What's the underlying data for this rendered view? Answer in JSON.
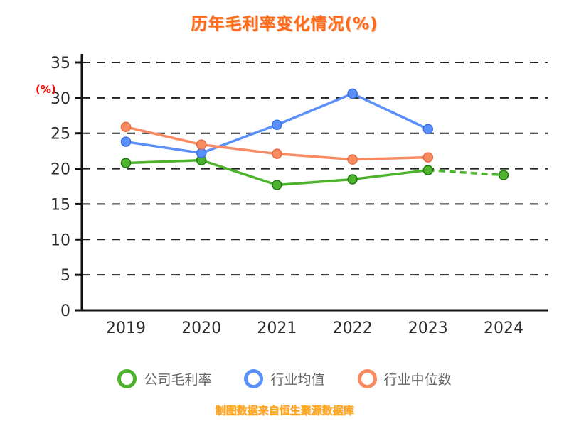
{
  "chart_data": {
    "type": "line",
    "title": "历年毛利率变化情况(%)",
    "ylabel": "(%)",
    "xlabel": "",
    "footnote": "制图数据来自恒生聚源数据库",
    "x": [
      "2019",
      "2020",
      "2021",
      "2022",
      "2023",
      "2024"
    ],
    "ylim": [
      0,
      35
    ],
    "yticks": [
      0,
      5,
      10,
      15,
      20,
      25,
      30,
      35
    ],
    "grid": "horizontal-dashed",
    "legend_position": "bottom",
    "series": [
      {
        "key": "company-gross-margin",
        "name": "公司毛利率",
        "color": "#4db32c",
        "edge": "#1e7a12",
        "values": [
          20.8,
          21.2,
          17.7,
          18.5,
          19.8,
          19.1
        ],
        "dash_from": 4
      },
      {
        "key": "industry-mean",
        "name": "行业均值",
        "color": "#5b8ff9",
        "edge": "#3a6fe0",
        "values": [
          23.8,
          22.2,
          26.2,
          30.6,
          25.6,
          null
        ],
        "dash_from": null
      },
      {
        "key": "industry-median",
        "name": "行业中位数",
        "color": "#f98b63",
        "edge": "#e56a3e",
        "values": [
          25.9,
          23.4,
          22.1,
          21.3,
          21.6,
          null
        ],
        "dash_from": null
      }
    ]
  }
}
